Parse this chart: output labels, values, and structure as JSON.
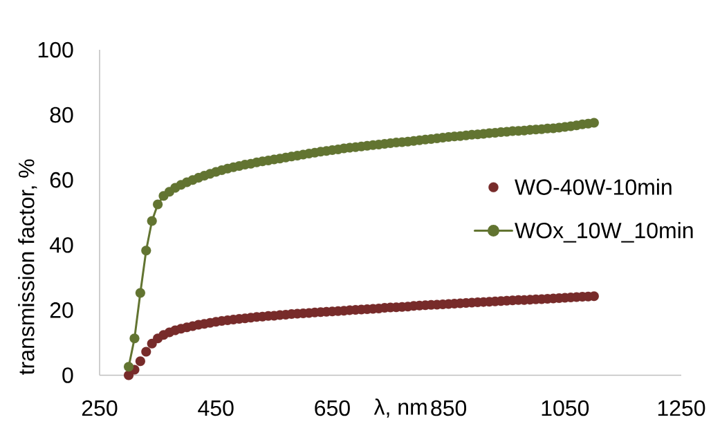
{
  "chart_data": {
    "type": "line",
    "xlabel": "λ, nm",
    "ylabel": "transmission factor, %",
    "x": [
      300,
      310,
      320,
      330,
      340,
      350,
      360,
      370,
      380,
      390,
      400,
      410,
      420,
      430,
      440,
      450,
      460,
      470,
      480,
      490,
      500,
      510,
      520,
      530,
      540,
      550,
      560,
      570,
      580,
      590,
      600,
      610,
      620,
      630,
      640,
      650,
      660,
      670,
      680,
      690,
      700,
      710,
      720,
      730,
      740,
      750,
      760,
      770,
      780,
      790,
      800,
      810,
      820,
      830,
      840,
      850,
      860,
      870,
      880,
      890,
      900,
      910,
      920,
      930,
      940,
      950,
      960,
      970,
      980,
      990,
      1000,
      1010,
      1020,
      1030,
      1040,
      1050,
      1060,
      1070,
      1080,
      1090,
      1100
    ],
    "series": [
      {
        "name": "WO-40W-10min",
        "type": "scatter",
        "color": "#772b2a",
        "values": [
          0,
          1.7,
          4.3,
          7.2,
          9.7,
          11.3,
          12.4,
          13.2,
          13.8,
          14.3,
          14.7,
          15.1,
          15.5,
          15.8,
          16.1,
          16.4,
          16.7,
          16.9,
          17.1,
          17.3,
          17.5,
          17.7,
          17.9,
          18.0,
          18.2,
          18.3,
          18.5,
          18.6,
          18.8,
          18.9,
          19.0,
          19.1,
          19.3,
          19.4,
          19.5,
          19.6,
          19.7,
          19.8,
          20.0,
          20.1,
          20.2,
          20.3,
          20.4,
          20.5,
          20.7,
          20.8,
          20.9,
          21.0,
          21.1,
          21.3,
          21.4,
          21.5,
          21.6,
          21.7,
          21.8,
          21.9,
          22.0,
          22.1,
          22.2,
          22.3,
          22.4,
          22.5,
          22.6,
          22.7,
          22.8,
          22.9,
          23.0,
          23.1,
          23.1,
          23.2,
          23.3,
          23.4,
          23.5,
          23.6,
          23.7,
          23.8,
          23.9,
          24.0,
          24.1,
          24.2,
          24.3
        ]
      },
      {
        "name": "WOx_10W_10min",
        "color": "#627431",
        "values": [
          2.6,
          11.3,
          25.3,
          38.3,
          47.4,
          52.5,
          55.1,
          56.4,
          57.6,
          58.5,
          59.3,
          60.0,
          60.7,
          61.3,
          61.9,
          62.5,
          63.0,
          63.5,
          63.9,
          64.3,
          64.7,
          65.0,
          65.4,
          65.7,
          66.0,
          66.3,
          66.6,
          66.9,
          67.2,
          67.5,
          67.8,
          68.1,
          68.4,
          68.7,
          68.9,
          69.2,
          69.4,
          69.7,
          69.9,
          70.1,
          70.3,
          70.5,
          70.7,
          70.9,
          71.1,
          71.3,
          71.5,
          71.6,
          71.8,
          72.0,
          72.2,
          72.4,
          72.6,
          72.8,
          73.0,
          73.2,
          73.4,
          73.5,
          73.7,
          73.9,
          74.0,
          74.2,
          74.4,
          74.5,
          74.7,
          74.8,
          75.0,
          75.1,
          75.2,
          75.4,
          75.5,
          75.6,
          75.8,
          75.9,
          76.1,
          76.3,
          76.5,
          76.8,
          77.1,
          77.3,
          77.6
        ]
      }
    ],
    "xlim": [
      250,
      1250
    ],
    "ylim": [
      0,
      100
    ],
    "xticks": [
      250,
      450,
      650,
      850,
      1050,
      1250
    ],
    "yticks": [
      0,
      20,
      40,
      60,
      80,
      100
    ],
    "legend": "right",
    "marker": "circle",
    "line_style": "solid"
  }
}
